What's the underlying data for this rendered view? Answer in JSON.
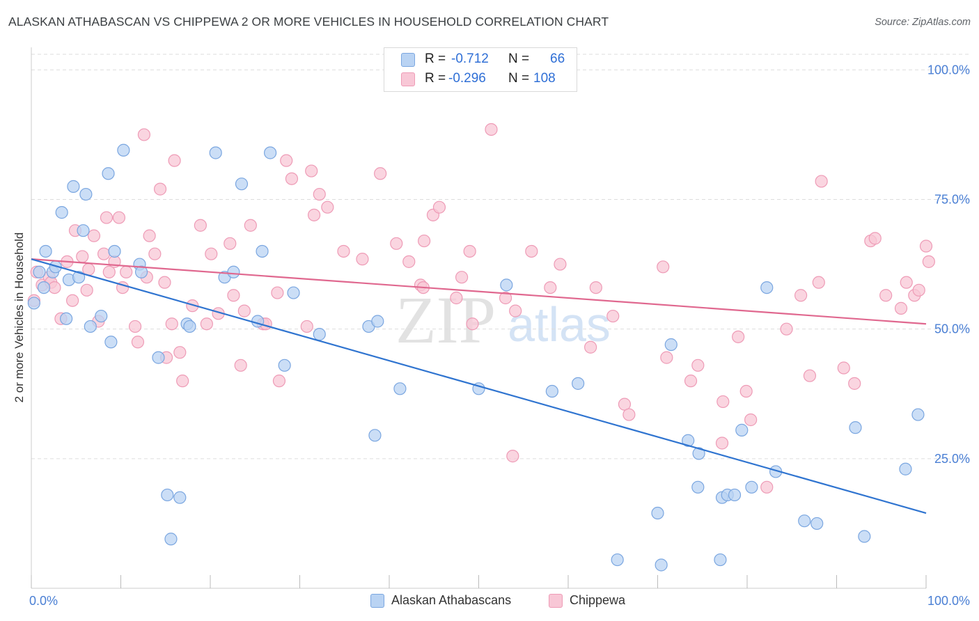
{
  "header": {
    "title": "ALASKAN ATHABASCAN VS CHIPPEWA 2 OR MORE VEHICLES IN HOUSEHOLD CORRELATION CHART",
    "source": "Source: ZipAtlas.com"
  },
  "watermark": {
    "zip": "ZIP",
    "atlas": "atlas"
  },
  "legend": {
    "rows": [
      {
        "r_label": "R =",
        "r_value": "-0.712",
        "n_label": "N =",
        "n_value": "66"
      },
      {
        "r_label": "R =",
        "r_value": "-0.296",
        "n_label": "N =",
        "n_value": "108"
      }
    ],
    "bottom": [
      "Alaskan Athabascans",
      "Chippewa"
    ]
  },
  "colors": {
    "blue_fill": "#b9d3f3",
    "blue_stroke": "#7aa6e0",
    "blue_line": "#2f74d0",
    "pink_fill": "#f8c7d6",
    "pink_stroke": "#ee9bb6",
    "pink_line": "#e0688f",
    "tick_label": "#4a7fd4",
    "grid": "#dddddd"
  },
  "chart_data": {
    "type": "scatter",
    "title": "ALASKAN ATHABASCAN VS CHIPPEWA 2 OR MORE VEHICLES IN HOUSEHOLD CORRELATION CHART",
    "xlabel": "",
    "ylabel": "2 or more Vehicles in Household",
    "xlim": [
      0,
      100
    ],
    "ylim": [
      0,
      103
    ],
    "x_tick_labels": [
      "0.0%",
      "100.0%"
    ],
    "y_ticks": [
      25,
      50,
      75,
      100
    ],
    "y_tick_labels": [
      "25.0%",
      "50.0%",
      "75.0%",
      "100.0%"
    ],
    "grid": true,
    "legend_position": "top-center",
    "series": [
      {
        "name": "Alaskan Athabascans",
        "color": "blue",
        "trend": [
          [
            0,
            63.5
          ],
          [
            100,
            14.5
          ]
        ],
        "points": [
          [
            0.3,
            55
          ],
          [
            0.9,
            61
          ],
          [
            1.4,
            58
          ],
          [
            1.6,
            65
          ],
          [
            2.4,
            61
          ],
          [
            2.7,
            62
          ],
          [
            3.4,
            72.5
          ],
          [
            3.9,
            52
          ],
          [
            4.2,
            59.5
          ],
          [
            4.7,
            77.5
          ],
          [
            5.3,
            60
          ],
          [
            5.8,
            69
          ],
          [
            6.1,
            76
          ],
          [
            6.6,
            50.5
          ],
          [
            7.8,
            52.5
          ],
          [
            8.6,
            80
          ],
          [
            8.9,
            47.5
          ],
          [
            9.3,
            65
          ],
          [
            10.3,
            84.5
          ],
          [
            12.1,
            62.5
          ],
          [
            12.3,
            61
          ],
          [
            14.2,
            44.5
          ],
          [
            15.2,
            18
          ],
          [
            15.6,
            9.5
          ],
          [
            16.6,
            17.5
          ],
          [
            17.4,
            51
          ],
          [
            17.7,
            50.5
          ],
          [
            20.6,
            84
          ],
          [
            21.6,
            60
          ],
          [
            22.6,
            61
          ],
          [
            23.5,
            78
          ],
          [
            25.3,
            51.5
          ],
          [
            25.8,
            65
          ],
          [
            26.7,
            84
          ],
          [
            28.3,
            43
          ],
          [
            29.3,
            57
          ],
          [
            32.2,
            49
          ],
          [
            37.7,
            50.5
          ],
          [
            38.7,
            51.5
          ],
          [
            38.4,
            29.5
          ],
          [
            41.2,
            38.5
          ],
          [
            50.0,
            38.5
          ],
          [
            53.1,
            58.5
          ],
          [
            58.2,
            38
          ],
          [
            61.1,
            39.5
          ],
          [
            65.5,
            5.5
          ],
          [
            70.0,
            14.5
          ],
          [
            70.4,
            4.5
          ],
          [
            71.5,
            47
          ],
          [
            73.4,
            28.5
          ],
          [
            74.5,
            19.5
          ],
          [
            74.6,
            26
          ],
          [
            77.0,
            5.5
          ],
          [
            77.2,
            17.5
          ],
          [
            77.8,
            18
          ],
          [
            78.6,
            18
          ],
          [
            79.4,
            30.5
          ],
          [
            80.5,
            19.5
          ],
          [
            82.2,
            58
          ],
          [
            83.2,
            22.5
          ],
          [
            86.4,
            13
          ],
          [
            87.8,
            12.5
          ],
          [
            92.1,
            31
          ],
          [
            93.1,
            10
          ],
          [
            97.7,
            23
          ],
          [
            99.1,
            33.5
          ]
        ]
      },
      {
        "name": "Chippewa",
        "color": "pink",
        "trend": [
          [
            0,
            63.5
          ],
          [
            100,
            51
          ]
        ],
        "points": [
          [
            0.3,
            55.5
          ],
          [
            0.6,
            61
          ],
          [
            1.2,
            58.5
          ],
          [
            2.0,
            60
          ],
          [
            2.2,
            59
          ],
          [
            2.6,
            58
          ],
          [
            3.3,
            52
          ],
          [
            4.0,
            63
          ],
          [
            4.6,
            55.5
          ],
          [
            4.9,
            69
          ],
          [
            5.7,
            64
          ],
          [
            6.2,
            57.5
          ],
          [
            6.4,
            61.5
          ],
          [
            7.0,
            68
          ],
          [
            7.5,
            51.5
          ],
          [
            8.1,
            64.5
          ],
          [
            8.4,
            71.5
          ],
          [
            8.7,
            61
          ],
          [
            9.3,
            63
          ],
          [
            9.8,
            71.5
          ],
          [
            10.2,
            58
          ],
          [
            10.6,
            61
          ],
          [
            11.6,
            50.5
          ],
          [
            11.9,
            47.5
          ],
          [
            12.6,
            87.5
          ],
          [
            12.9,
            60
          ],
          [
            13.2,
            68
          ],
          [
            13.8,
            64.5
          ],
          [
            14.4,
            77
          ],
          [
            14.9,
            59
          ],
          [
            15.1,
            44.5
          ],
          [
            15.7,
            51
          ],
          [
            16.0,
            82.5
          ],
          [
            16.6,
            45.5
          ],
          [
            16.9,
            40
          ],
          [
            18.0,
            54.5
          ],
          [
            18.9,
            70
          ],
          [
            19.6,
            51
          ],
          [
            20.1,
            64.5
          ],
          [
            20.9,
            53
          ],
          [
            22.2,
            66.5
          ],
          [
            22.6,
            56.5
          ],
          [
            23.4,
            43
          ],
          [
            23.8,
            53.5
          ],
          [
            24.5,
            70
          ],
          [
            25.9,
            51
          ],
          [
            26.2,
            51
          ],
          [
            27.5,
            57
          ],
          [
            27.7,
            40
          ],
          [
            28.5,
            82.5
          ],
          [
            29.1,
            79
          ],
          [
            30.8,
            50.5
          ],
          [
            31.3,
            80.5
          ],
          [
            31.6,
            72
          ],
          [
            32.2,
            76
          ],
          [
            33.1,
            73.5
          ],
          [
            34.9,
            65
          ],
          [
            37.0,
            63.5
          ],
          [
            39.0,
            80
          ],
          [
            40.8,
            66.5
          ],
          [
            42.2,
            63
          ],
          [
            43.5,
            58.5
          ],
          [
            43.8,
            58
          ],
          [
            43.9,
            67
          ],
          [
            44.9,
            72
          ],
          [
            45.6,
            73.5
          ],
          [
            47.5,
            56
          ],
          [
            48.1,
            60
          ],
          [
            49.0,
            65
          ],
          [
            49.3,
            51
          ],
          [
            51.4,
            88.5
          ],
          [
            53.0,
            56
          ],
          [
            53.8,
            25.5
          ],
          [
            54.1,
            53.5
          ],
          [
            55.9,
            65
          ],
          [
            58.0,
            58
          ],
          [
            59.1,
            62.5
          ],
          [
            62.5,
            46.5
          ],
          [
            63.1,
            58
          ],
          [
            65.0,
            52.5
          ],
          [
            66.3,
            35.5
          ],
          [
            66.8,
            33.5
          ],
          [
            70.6,
            62
          ],
          [
            71.0,
            44.5
          ],
          [
            73.7,
            40
          ],
          [
            74.5,
            43
          ],
          [
            77.2,
            28
          ],
          [
            77.3,
            36
          ],
          [
            79.0,
            48.5
          ],
          [
            79.9,
            38
          ],
          [
            80.4,
            32.5
          ],
          [
            82.2,
            19.5
          ],
          [
            84.4,
            50
          ],
          [
            86.0,
            56.5
          ],
          [
            87.0,
            41
          ],
          [
            88.0,
            59
          ],
          [
            88.3,
            78.5
          ],
          [
            90.8,
            42.5
          ],
          [
            92.0,
            39.5
          ],
          [
            93.8,
            67
          ],
          [
            94.3,
            67.5
          ],
          [
            95.5,
            56.5
          ],
          [
            97.2,
            54
          ],
          [
            97.8,
            59
          ],
          [
            98.7,
            56.5
          ],
          [
            99.2,
            57.5
          ],
          [
            100.0,
            66
          ],
          [
            100.3,
            63
          ]
        ]
      }
    ]
  }
}
